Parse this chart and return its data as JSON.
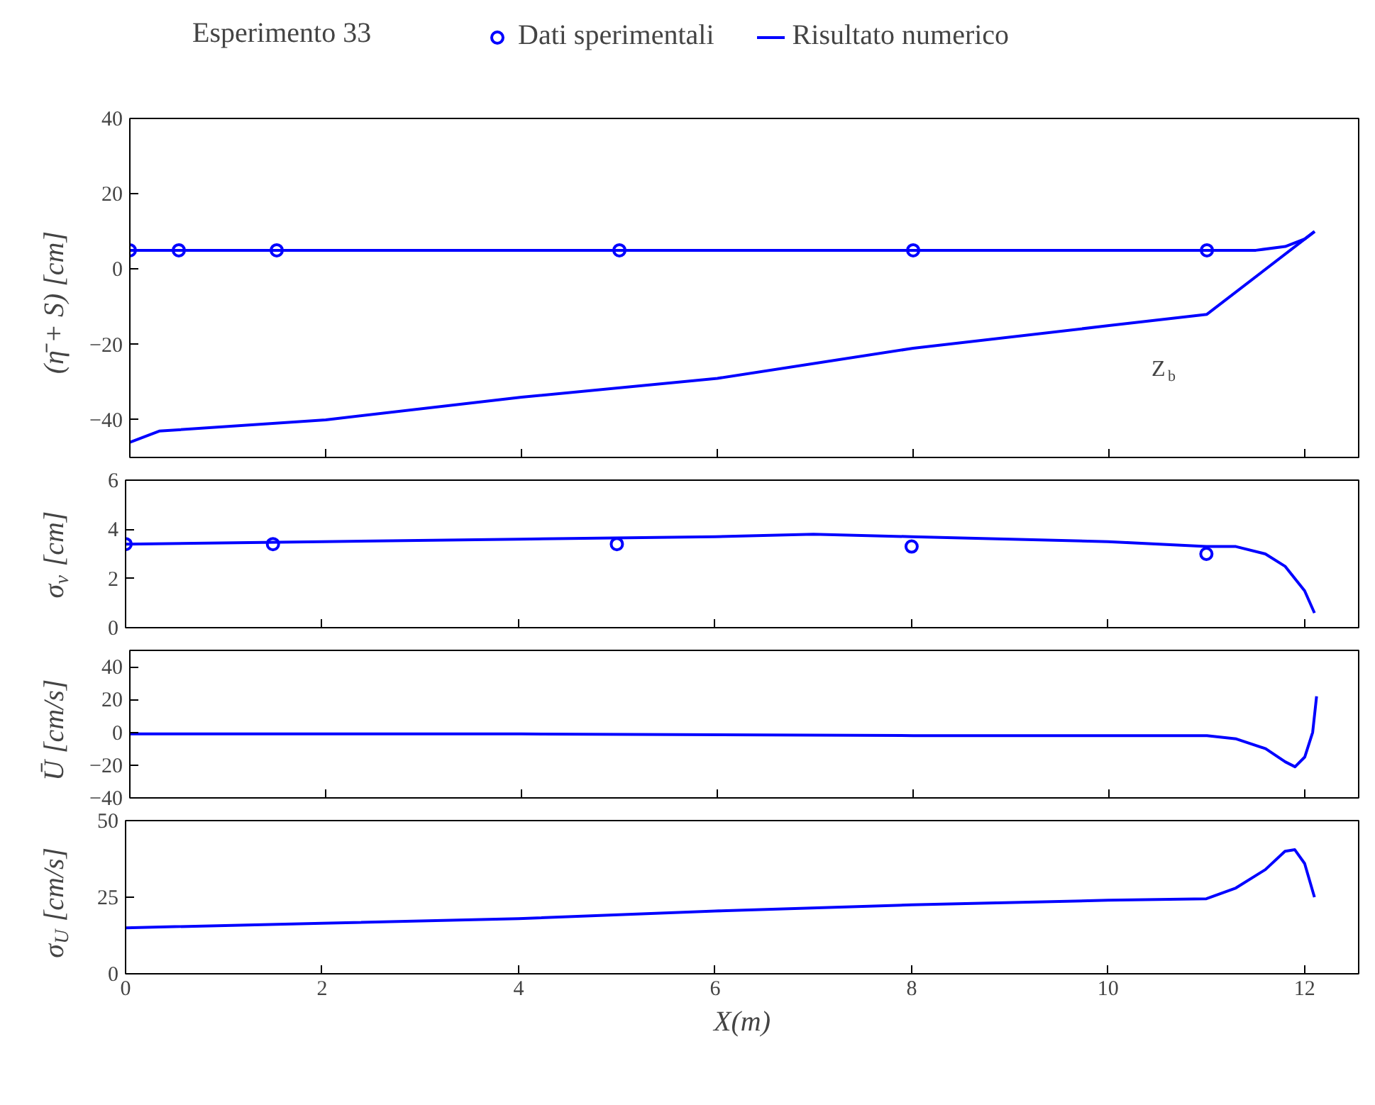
{
  "chart_data": [
    {
      "type": "line",
      "legend_title": "Esperimento 33",
      "legend": "top",
      "ylabel": "(η̄ + S) [cm]",
      "xlim": [
        0,
        12.55
      ],
      "xticks": [
        0,
        2,
        4,
        6,
        8,
        10,
        12
      ],
      "ylim": [
        -50,
        40
      ],
      "yticks": [
        -40,
        -20,
        0,
        20,
        40
      ],
      "tick_labels": "y",
      "grid": false,
      "annotations": [
        "Z$_{b}$"
      ],
      "series": [
        {
          "name": "Dati sperimentali",
          "type": "scatter",
          "marker": "circle",
          "color": "#0000ff",
          "x": [
            0,
            0.5,
            1.5,
            5,
            8,
            11
          ],
          "values": [
            5,
            5,
            5,
            5,
            5,
            5
          ]
        },
        {
          "name": "Risultato numerico",
          "color": "#0000ff",
          "x": [
            0,
            2,
            4,
            6,
            8,
            10,
            11,
            11.5,
            11.8,
            12.0,
            12.1
          ],
          "values": [
            5,
            5,
            5,
            5,
            5,
            5,
            5,
            5,
            6,
            8,
            10
          ]
        },
        {
          "color": "#0000ff",
          "x": [
            0,
            0.3,
            2,
            4,
            6,
            8,
            10,
            11,
            12.1
          ],
          "values": [
            -46,
            -43,
            -40,
            -34,
            -29,
            -21,
            -15,
            -12,
            10
          ]
        }
      ]
    },
    {
      "type": "line",
      "ylabel": "σ$_{v}$ [cm]",
      "xlim": [
        0,
        12.55
      ],
      "xticks": [
        0,
        2,
        4,
        6,
        8,
        10,
        12
      ],
      "ylim": [
        0,
        6
      ],
      "yticks": [
        0,
        2,
        4,
        6
      ],
      "tick_labels": "y",
      "grid": false,
      "series": [
        {
          "type": "scatter",
          "marker": "circle",
          "color": "#0000ff",
          "x": [
            0,
            1.5,
            5,
            8,
            11
          ],
          "values": [
            3.4,
            3.4,
            3.4,
            3.3,
            3.0
          ]
        },
        {
          "color": "#0000ff",
          "x": [
            0,
            2,
            4,
            6,
            7,
            8,
            10,
            11,
            11.3,
            11.6,
            11.8,
            12.0,
            12.1
          ],
          "values": [
            3.4,
            3.5,
            3.6,
            3.7,
            3.8,
            3.7,
            3.5,
            3.3,
            3.3,
            3.0,
            2.5,
            1.5,
            0.6
          ]
        }
      ]
    },
    {
      "type": "line",
      "ylabel": "Ū [cm/s]",
      "xlim": [
        0,
        12.55
      ],
      "xticks": [
        0,
        2,
        4,
        6,
        8,
        10,
        12
      ],
      "ylim": [
        -40,
        50
      ],
      "yticks": [
        -40,
        -20,
        0,
        20,
        40
      ],
      "tick_labels": "y",
      "grid": false,
      "series": [
        {
          "color": "#0000ff",
          "x": [
            0,
            4,
            8,
            11,
            11.3,
            11.6,
            11.8,
            11.9,
            12.0,
            12.08,
            12.12
          ],
          "values": [
            -1,
            -1,
            -2,
            -2,
            -4,
            -10,
            -18,
            -21,
            -15,
            0,
            22
          ]
        }
      ]
    },
    {
      "type": "line",
      "ylabel": "σ$_{U}$ [cm/s]",
      "xlabel": "X(m)",
      "xlim": [
        0,
        12.55
      ],
      "xticks": [
        0,
        2,
        4,
        6,
        8,
        10,
        12
      ],
      "ylim": [
        0,
        50
      ],
      "yticks": [
        0,
        25,
        50
      ],
      "grid": false,
      "series": [
        {
          "color": "#0000ff",
          "x": [
            0,
            2,
            4,
            6,
            8,
            10,
            11,
            11.3,
            11.6,
            11.8,
            11.9,
            12.0,
            12.1
          ],
          "values": [
            15,
            16.5,
            18,
            20.5,
            22.5,
            24,
            24.5,
            28,
            34,
            40,
            40.5,
            36,
            25
          ]
        }
      ]
    }
  ]
}
